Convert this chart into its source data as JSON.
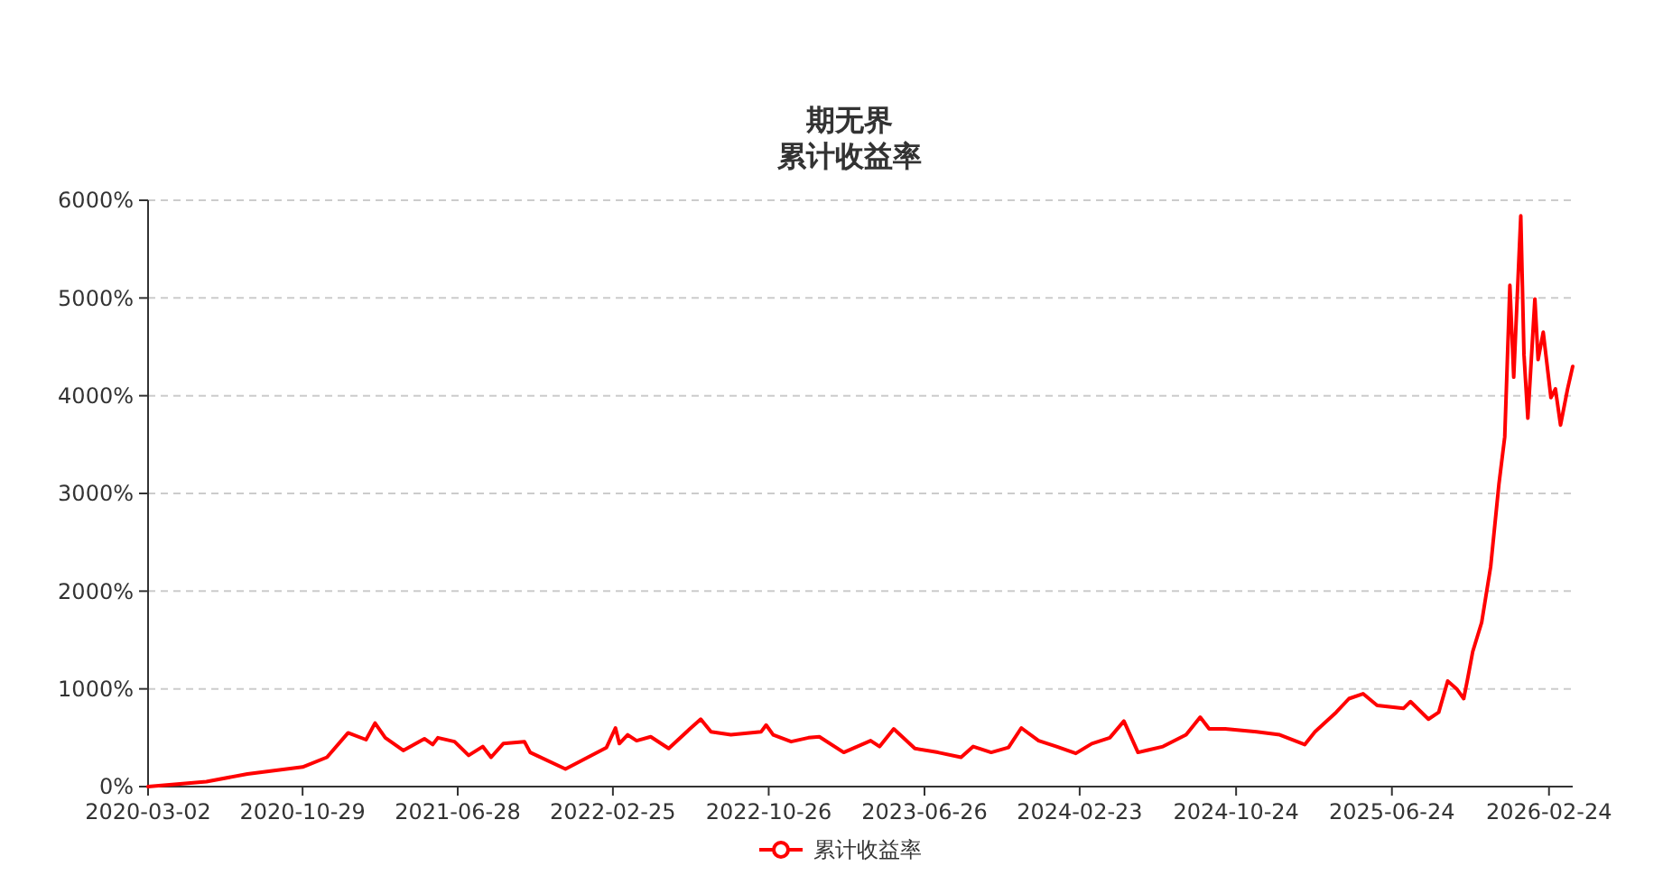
{
  "chart_data": {
    "type": "line",
    "title": "期无界",
    "subtitle": "累计收益率",
    "legend": "bottom",
    "grid": "y",
    "line_style": "solid",
    "xlim": [
      "2020-03-02",
      "2026-04-02"
    ],
    "ylim": [
      0,
      6000
    ],
    "xticks": [
      {
        "value": "2020-03-02",
        "label": "2020-03-02"
      },
      {
        "value": "2020-10-29",
        "label": "2020-10-29"
      },
      {
        "value": "2021-06-28",
        "label": "2021-06-28"
      },
      {
        "value": "2022-02-25",
        "label": "2022-02-25"
      },
      {
        "value": "2022-10-26",
        "label": "2022-10-26"
      },
      {
        "value": "2023-06-26",
        "label": "2023-06-26"
      },
      {
        "value": "2024-02-23",
        "label": "2024-02-23"
      },
      {
        "value": "2024-10-24",
        "label": "2024-10-24"
      },
      {
        "value": "2025-06-24",
        "label": "2025-06-24"
      },
      {
        "value": "2026-02-24",
        "label": "2026-02-24"
      }
    ],
    "yticks": [
      {
        "value": 0,
        "label": "0%"
      },
      {
        "value": 1000,
        "label": "1000%"
      },
      {
        "value": 2000,
        "label": "2000%"
      },
      {
        "value": 3000,
        "label": "3000%"
      },
      {
        "value": 4000,
        "label": "4000%"
      },
      {
        "value": 5000,
        "label": "5000%"
      },
      {
        "value": 6000,
        "label": "6000%"
      }
    ],
    "x": [
      "2020-03-02",
      "2020-06-01",
      "2020-08-04",
      "2020-10-29",
      "2020-12-06",
      "2021-01-08",
      "2021-02-05",
      "2021-02-19",
      "2021-03-07",
      "2021-04-04",
      "2021-05-07",
      "2021-05-20",
      "2021-05-28",
      "2021-06-23",
      "2021-07-15",
      "2021-08-06",
      "2021-08-19",
      "2021-09-07",
      "2021-10-10",
      "2021-10-19",
      "2021-12-13",
      "2022-02-15",
      "2022-03-01",
      "2022-03-07",
      "2022-03-20",
      "2022-04-03",
      "2022-04-25",
      "2022-05-23",
      "2022-06-25",
      "2022-07-12",
      "2022-07-28",
      "2022-08-28",
      "2022-10-14",
      "2022-10-22",
      "2022-11-02",
      "2022-11-30",
      "2022-12-27",
      "2023-01-13",
      "2023-02-20",
      "2023-04-03",
      "2023-04-17",
      "2023-05-09",
      "2023-06-11",
      "2023-07-17",
      "2023-08-22",
      "2023-09-10",
      "2023-10-08",
      "2023-11-04",
      "2023-11-24",
      "2023-12-21",
      "2024-01-18",
      "2024-02-17",
      "2024-03-13",
      "2024-04-10",
      "2024-05-02",
      "2024-05-24",
      "2024-07-02",
      "2024-08-07",
      "2024-08-29",
      "2024-09-12",
      "2024-10-07",
      "2024-11-25",
      "2024-12-31",
      "2025-02-08",
      "2025-02-24",
      "2025-03-29",
      "2025-04-18",
      "2025-05-10",
      "2025-06-01",
      "2025-07-12",
      "2025-07-23",
      "2025-08-20",
      "2025-09-05",
      "2025-09-19",
      "2025-10-03",
      "2025-10-14",
      "2025-10-20",
      "2025-10-28",
      "2025-11-11",
      "2025-11-25",
      "2025-12-08",
      "2025-12-17",
      "2025-12-25",
      "2025-12-31",
      "2026-01-11",
      "2026-01-16",
      "2026-01-22",
      "2026-02-02",
      "2026-02-07",
      "2026-02-15",
      "2026-02-27",
      "2026-03-06",
      "2026-03-14",
      "2026-03-25",
      "2026-04-02"
    ],
    "series": [
      {
        "name": "累计收益率",
        "color": "#ff0000",
        "values": [
          0,
          50,
          130,
          200,
          300,
          550,
          480,
          650,
          500,
          370,
          490,
          430,
          500,
          460,
          320,
          410,
          300,
          440,
          460,
          350,
          180,
          400,
          600,
          440,
          530,
          470,
          510,
          390,
          590,
          690,
          560,
          530,
          560,
          630,
          530,
          460,
          500,
          510,
          350,
          470,
          410,
          590,
          390,
          350,
          300,
          410,
          350,
          400,
          600,
          470,
          410,
          340,
          440,
          500,
          670,
          350,
          410,
          530,
          710,
          590,
          590,
          560,
          530,
          430,
          560,
          760,
          900,
          950,
          830,
          800,
          870,
          690,
          760,
          1080,
          1000,
          900,
          1100,
          1380,
          1680,
          2250,
          3100,
          3580,
          5130,
          4190,
          5840,
          4420,
          3770,
          4990,
          4370,
          4650,
          3980,
          4070,
          3700,
          4070,
          4300
        ]
      }
    ]
  }
}
